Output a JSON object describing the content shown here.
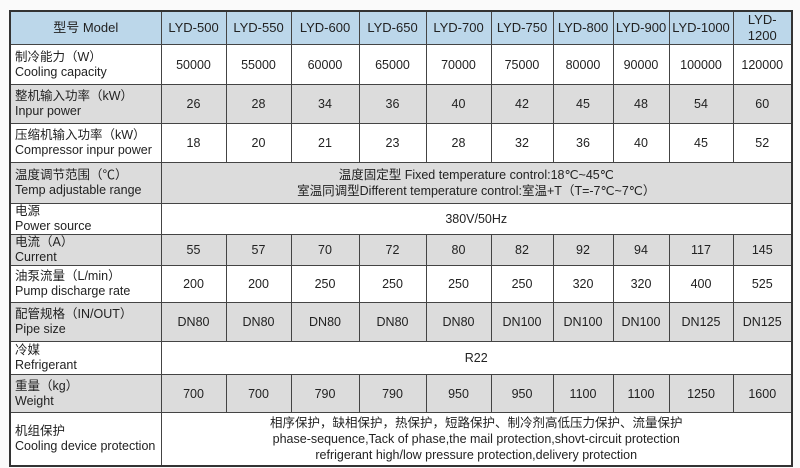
{
  "header": {
    "label": "型号 Model",
    "models": [
      "LYD-500",
      "LYD-550",
      "LYD-600",
      "LYD-650",
      "LYD-700",
      "LYD-750",
      "LYD-800",
      "LYD-900",
      "LYD-1000",
      "LYD-1200"
    ]
  },
  "rows": [
    {
      "zh": "制冷能力（W）",
      "en": "Cooling capacity",
      "values": [
        "50000",
        "55000",
        "60000",
        "65000",
        "70000",
        "75000",
        "80000",
        "90000",
        "100000",
        "120000"
      ]
    },
    {
      "zh": "整机输入功率（kW）",
      "en": "Inpur power",
      "values": [
        "26",
        "28",
        "34",
        "36",
        "40",
        "42",
        "45",
        "48",
        "54",
        "60"
      ]
    },
    {
      "zh": "压缩机输入功率（kW）",
      "en": "Compressor inpur power",
      "values": [
        "18",
        "20",
        "21",
        "23",
        "28",
        "32",
        "36",
        "40",
        "45",
        "52"
      ]
    },
    {
      "zh": "温度调节范围（℃）",
      "en": "Temp adjustable range",
      "lines": [
        "温度固定型 Fixed temperature control:18℃~45℃",
        "室温同调型Different temperature control:室温+T（T=-7℃~7℃）"
      ]
    },
    {
      "zh": "电源",
      "en": "Power source",
      "lines": [
        "380V/50Hz"
      ]
    },
    {
      "zh": "电流（A）",
      "en": "Current",
      "values": [
        "55",
        "57",
        "70",
        "72",
        "80",
        "82",
        "92",
        "94",
        "117",
        "145"
      ]
    },
    {
      "zh": "油泵流量（L/min）",
      "en": "Pump discharge rate",
      "values": [
        "200",
        "200",
        "250",
        "250",
        "250",
        "250",
        "320",
        "320",
        "400",
        "525"
      ]
    },
    {
      "zh": "配管规格（IN/OUT）",
      "en": "Pipe size",
      "values": [
        "DN80",
        "DN80",
        "DN80",
        "DN80",
        "DN80",
        "DN100",
        "DN100",
        "DN100",
        "DN125",
        "DN125"
      ]
    },
    {
      "zh": "冷媒",
      "en": "Refrigerant",
      "lines": [
        "R22"
      ]
    },
    {
      "zh": "重量（kg）",
      "en": "Weight",
      "values": [
        "700",
        "700",
        "790",
        "790",
        "950",
        "950",
        "1100",
        "1100",
        "1250",
        "1600"
      ]
    },
    {
      "zh": "机组保护",
      "en": "Cooling device protection",
      "lines": [
        "相序保护，缺相保护，热保护，短路保护、制冷剂高低压力保护、流量保护",
        "phase-sequence,Tack of phase,the mail protection,shovt-circuit protection",
        "refrigerant high/low pressure protection,delivery protection"
      ]
    }
  ],
  "colors": {
    "header_bg": "#bcd7ea",
    "shaded_row": "#dcdcdc"
  }
}
